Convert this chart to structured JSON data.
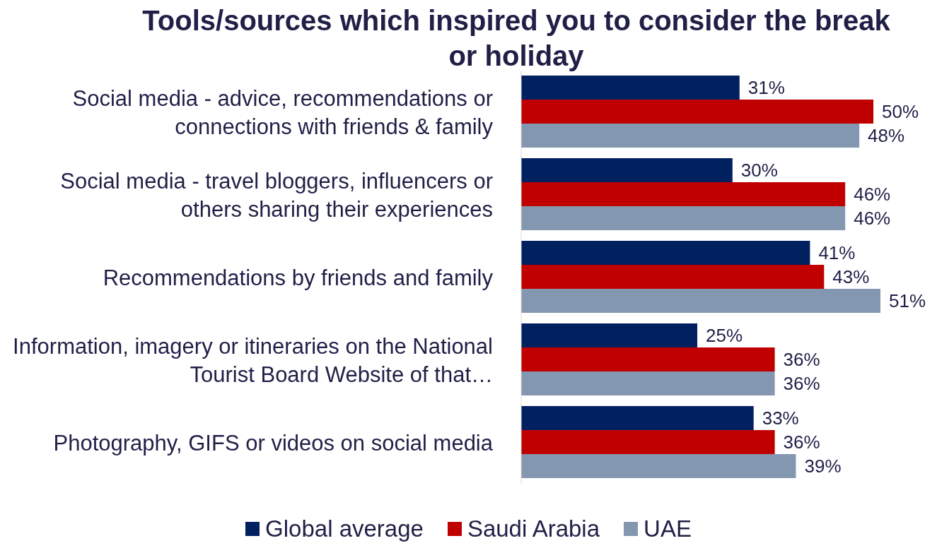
{
  "chart_data": {
    "type": "bar",
    "orientation": "horizontal",
    "title": "Tools/sources which inspired you to consider the break or holiday",
    "categories": [
      "Social media - advice, recommendations or connections with friends & family",
      "Social media - travel bloggers, influencers or others sharing their experiences",
      "Recommendations by friends and family",
      "Information, imagery or itineraries on the National Tourist Board Website of that…",
      "Photography, GIFS or videos on social media"
    ],
    "legend": "bottom",
    "series": [
      {
        "name": "Global average",
        "color": "#002060",
        "values": [
          31,
          30,
          41,
          25,
          33
        ],
        "value_labels": [
          "31%",
          "30%",
          "41%",
          "25%",
          "33%"
        ]
      },
      {
        "name": "Saudi Arabia",
        "color": "#c00000",
        "values": [
          50,
          46,
          43,
          36,
          36
        ],
        "value_labels": [
          "50%",
          "46%",
          "43%",
          "36%",
          "36%"
        ]
      },
      {
        "name": "UAE",
        "color": "#8497b0",
        "values": [
          48,
          46,
          51,
          36,
          39
        ],
        "value_labels": [
          "48%",
          "46%",
          "51%",
          "36%",
          "39%"
        ]
      }
    ]
  }
}
